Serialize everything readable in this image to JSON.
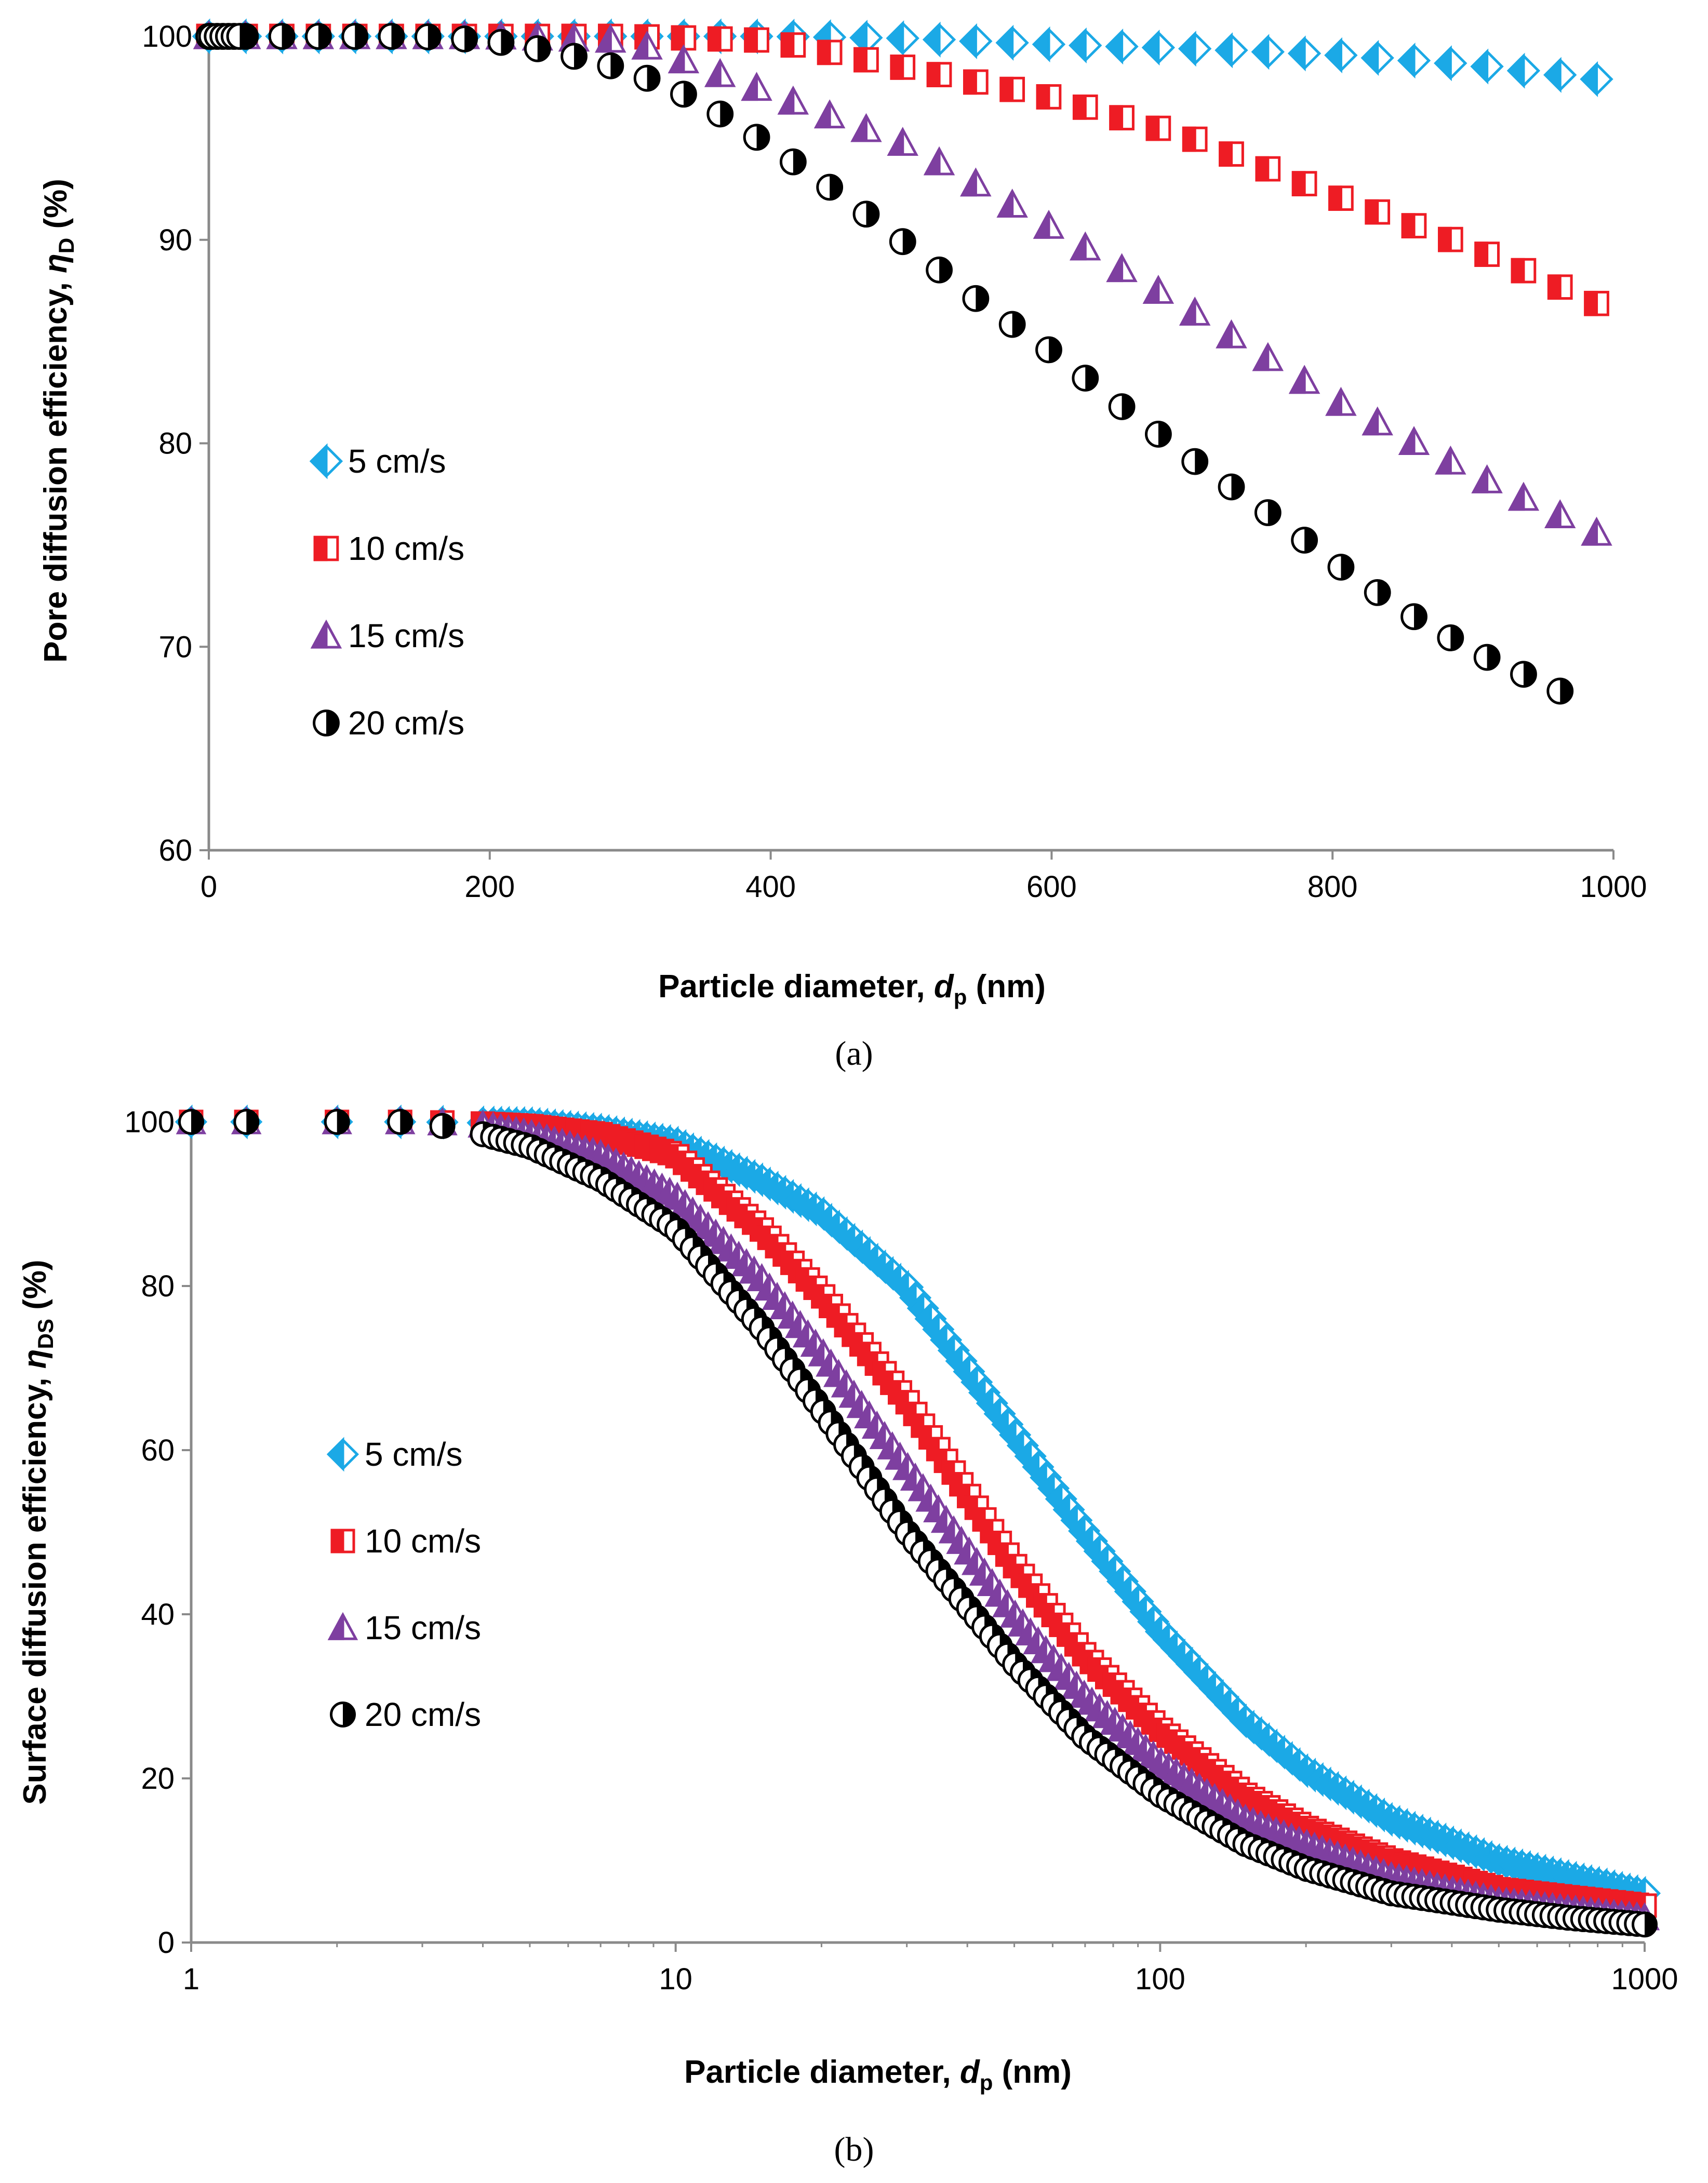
{
  "colors": {
    "v5": "#1BA9E6",
    "v10": "#EE1C24",
    "v15": "#7E3FA0",
    "v20": "#000000"
  },
  "chart_data": [
    {
      "type": "scatter",
      "panel_label": "(a)",
      "title": "",
      "xlabel_main": "Particle diameter, ",
      "xlabel_var": "d",
      "xlabel_sub": "p",
      "xlabel_unit": " (nm)",
      "ylabel_main": "Pore diffusion efficiency, ",
      "ylabel_var": "η",
      "ylabel_sub": "D",
      "ylabel_unit": " (%)",
      "xscale": "linear",
      "xlim": [
        0,
        1000
      ],
      "ylim": [
        60,
        100
      ],
      "xticks": [
        "0",
        "200",
        "400",
        "600",
        "800",
        "1000"
      ],
      "yticks": [
        "60",
        "70",
        "80",
        "90",
        "100"
      ],
      "legend_position": "left-middle",
      "series": [
        {
          "name": "5 cm/s",
          "marker": "diamond",
          "color": "#1BA9E6",
          "x": [
            0,
            200,
            300,
            400,
            500,
            600,
            700,
            800,
            900,
            1000
          ],
          "y": [
            100,
            100,
            100,
            100,
            99.9,
            99.6,
            99.4,
            99.1,
            98.6,
            97.8
          ]
        },
        {
          "name": "10 cm/s",
          "marker": "square",
          "color": "#EE1C24",
          "x": [
            0,
            200,
            300,
            400,
            500,
            600,
            700,
            800,
            900,
            1000
          ],
          "y": [
            100,
            100,
            100,
            99.8,
            98.4,
            97,
            95,
            92.2,
            89.6,
            86.5
          ]
        },
        {
          "name": "15 cm/s",
          "marker": "triangle",
          "color": "#7E3FA0",
          "x": [
            0,
            200,
            300,
            400,
            500,
            600,
            700,
            800,
            900,
            1000
          ],
          "y": [
            100,
            100,
            99.8,
            97.2,
            94.6,
            90.6,
            86.5,
            82.2,
            78.5,
            75.2
          ]
        },
        {
          "name": "20 cm/s",
          "marker": "circle",
          "color": "#000000",
          "x": [
            0,
            150,
            200,
            250,
            300,
            350,
            400,
            450,
            500,
            550,
            600,
            650,
            700,
            750,
            800,
            850,
            900,
            950,
            985
          ],
          "y": [
            100,
            100,
            99.8,
            99.2,
            98.3,
            96.8,
            94.6,
            92.2,
            89.6,
            86.9,
            84.5,
            81.8,
            79.2,
            76.8,
            74.2,
            71.8,
            69.8,
            68.2,
            67.1
          ]
        }
      ]
    },
    {
      "type": "scatter",
      "panel_label": "(b)",
      "title": "",
      "xlabel_main": "Particle diameter, ",
      "xlabel_var": "d",
      "xlabel_sub": "p",
      "xlabel_unit": " (nm)",
      "ylabel_main": "Surface diffusion efficiency, ",
      "ylabel_var": "η",
      "ylabel_sub": "DS",
      "ylabel_unit": " (%)",
      "xscale": "log",
      "xlim": [
        1,
        1000
      ],
      "ylim": [
        0,
        100
      ],
      "xticks": [
        "1",
        "10",
        "100",
        "1000"
      ],
      "yticks": [
        "0",
        "20",
        "40",
        "60",
        "80",
        "100"
      ],
      "legend_position": "left-middle",
      "series": [
        {
          "name": "5 cm/s",
          "marker": "diamond",
          "color": "#1BA9E6",
          "x": [
            1,
            3,
            5,
            7,
            10,
            15,
            20,
            30,
            50,
            70,
            100,
            150,
            200,
            300,
            500,
            700,
            1000
          ],
          "y": [
            100,
            100,
            99.8,
            99,
            97.5,
            93,
            89,
            80,
            62,
            50,
            38,
            27,
            21,
            15,
            10,
            8,
            6
          ]
        },
        {
          "name": "10 cm/s",
          "marker": "square",
          "color": "#EE1C24",
          "x": [
            1,
            3,
            4,
            5,
            7,
            10,
            15,
            20,
            30,
            50,
            70,
            100,
            150,
            200,
            300,
            500,
            700,
            1000
          ],
          "y": [
            100,
            100,
            99.8,
            99.5,
            98.5,
            96,
            87,
            79,
            66,
            46,
            35,
            26,
            18,
            14,
            10,
            6.5,
            5.5,
            4.5
          ]
        },
        {
          "name": "15 cm/s",
          "marker": "triangle",
          "color": "#7E3FA0",
          "x": [
            1,
            3,
            4,
            5,
            7,
            10,
            15,
            20,
            30,
            50,
            70,
            100,
            150,
            200,
            300,
            500,
            700,
            1000
          ],
          "y": [
            100,
            100,
            99.6,
            98.5,
            96,
            91,
            81,
            72,
            58,
            40,
            30,
            22,
            15,
            12,
            8,
            5,
            4,
            3
          ]
        },
        {
          "name": "20 cm/s",
          "marker": "circle",
          "color": "#000000",
          "x": [
            1,
            1.3,
            2,
            2.7,
            3.3,
            4,
            5,
            7,
            10,
            15,
            20,
            30,
            50,
            70,
            100,
            150,
            200,
            300,
            500,
            700,
            1000
          ],
          "y": [
            100,
            100,
            100,
            100,
            99.5,
            98.5,
            97,
            93,
            87,
            75,
            65,
            50,
            34,
            25,
            18,
            12,
            9,
            6,
            4,
            3,
            2.2
          ]
        }
      ]
    }
  ]
}
